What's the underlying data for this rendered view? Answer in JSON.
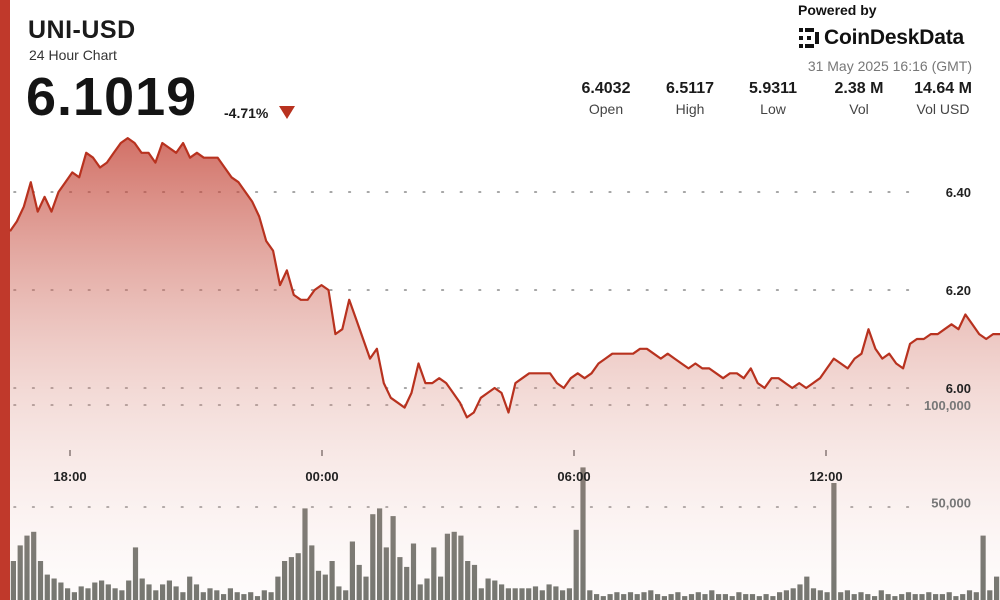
{
  "header": {
    "pair": "UNI-USD",
    "subtitle": "24 Hour Chart",
    "price": "6.1019",
    "change_pct": "-4.71%"
  },
  "branding": {
    "powered_by": "Powered by",
    "name": "CoinDeskData",
    "timestamp": "31 May 2025 16:16 (GMT)"
  },
  "stats": [
    {
      "value": "6.4032",
      "label": "Open"
    },
    {
      "value": "6.5117",
      "label": "High"
    },
    {
      "value": "5.9311",
      "label": "Low"
    },
    {
      "value": "2.38 M",
      "label": "Vol"
    },
    {
      "value": "14.64 M",
      "label": "Vol USD"
    }
  ],
  "colors": {
    "line": "#b8321f",
    "area_top": "#c0392b",
    "accent": "#c0392b",
    "volume_bar": "#6b6e68"
  },
  "chart_data": [
    {
      "type": "area",
      "series": [
        {
          "values": [
            6.32,
            6.34,
            6.37,
            6.42,
            6.36,
            6.39,
            6.36,
            6.4,
            6.42,
            6.44,
            6.43,
            6.48,
            6.47,
            6.45,
            6.46,
            6.48,
            6.5,
            6.51,
            6.5,
            6.48,
            6.48,
            6.46,
            6.5,
            6.49,
            6.48,
            6.5,
            6.47,
            6.48,
            6.47,
            6.47,
            6.47,
            6.45,
            6.43,
            6.42,
            6.4,
            6.38,
            6.35,
            6.3,
            6.28,
            6.21,
            6.24,
            6.19,
            6.18,
            6.18,
            6.2,
            6.21,
            6.2,
            6.11,
            6.12,
            6.18,
            6.14,
            6.1,
            6.06,
            6.08,
            6.01,
            5.98,
            5.97,
            5.96,
            5.99,
            6.05,
            6.01,
            6.01,
            6.02,
            6.01,
            5.99,
            5.97,
            5.94,
            5.95,
            5.98,
            5.99,
            6.0,
            5.99,
            5.95,
            6.01,
            6.02,
            6.03,
            6.03,
            6.03,
            6.03,
            6.01,
            6.0,
            6.02,
            6.03,
            6.02,
            6.03,
            6.05,
            6.06,
            6.07,
            6.07,
            6.07,
            6.07,
            6.08,
            6.08,
            6.07,
            6.06,
            6.07,
            6.06,
            6.05,
            6.04,
            6.05,
            6.04,
            6.04,
            6.03,
            6.02,
            6.03,
            6.03,
            6.02,
            6.04,
            6.01,
            6.0,
            6.02,
            6.02,
            6.01,
            6.0,
            6.01,
            6.0,
            6.01,
            6.02,
            6.04,
            6.06,
            6.05,
            6.04,
            6.06,
            6.07,
            6.12,
            6.08,
            6.06,
            6.07,
            6.05,
            6.04,
            6.09,
            6.1,
            6.1,
            6.11,
            6.11,
            6.12,
            6.13,
            6.12,
            6.15,
            6.13,
            6.11,
            6.1,
            6.11,
            6.11
          ]
        }
      ],
      "x_ticks": [
        "18:00",
        "00:00",
        "06:00",
        "12:00"
      ],
      "y_ticks": [
        "6.40",
        "6.20",
        "6.00"
      ],
      "ylim": [
        5.9311,
        6.5117
      ],
      "grid": true
    },
    {
      "type": "bar",
      "series": [
        {
          "values": [
            20000,
            28000,
            33000,
            35000,
            20000,
            13000,
            11000,
            9000,
            6000,
            4000,
            7000,
            6000,
            9000,
            10000,
            8000,
            6000,
            5000,
            10000,
            27000,
            11000,
            8000,
            5000,
            8000,
            10000,
            7000,
            4000,
            12000,
            8000,
            4000,
            6000,
            5000,
            3000,
            6000,
            4000,
            3000,
            4000,
            2000,
            5000,
            4000,
            12000,
            20000,
            22000,
            24000,
            47000,
            28000,
            15000,
            13000,
            20000,
            7000,
            5000,
            30000,
            18000,
            12000,
            44000,
            47000,
            27000,
            43000,
            22000,
            17000,
            29000,
            8000,
            11000,
            27000,
            12000,
            34000,
            35000,
            33000,
            20000,
            18000,
            6000,
            11000,
            10000,
            8000,
            6000,
            6000,
            6000,
            6000,
            7000,
            5000,
            8000,
            7000,
            5000,
            6000,
            36000,
            68000,
            5000,
            3000,
            2000,
            3000,
            4000,
            3000,
            4000,
            3000,
            4000,
            5000,
            3000,
            2000,
            3000,
            4000,
            2000,
            3000,
            4000,
            3000,
            5000,
            3000,
            3000,
            2000,
            4000,
            3000,
            3000,
            2000,
            3000,
            2000,
            4000,
            5000,
            6000,
            8000,
            12000,
            6000,
            5000,
            4000,
            60000,
            4000,
            5000,
            3000,
            4000,
            3000,
            2000,
            5000,
            3000,
            2000,
            3000,
            4000,
            3000,
            3000,
            4000,
            3000,
            3000,
            4000,
            2000,
            3000,
            5000,
            4000,
            33000,
            5000,
            12000
          ]
        }
      ],
      "y_ticks": [
        "100,000",
        "50,000"
      ],
      "ylim": [
        0,
        120000
      ]
    }
  ]
}
